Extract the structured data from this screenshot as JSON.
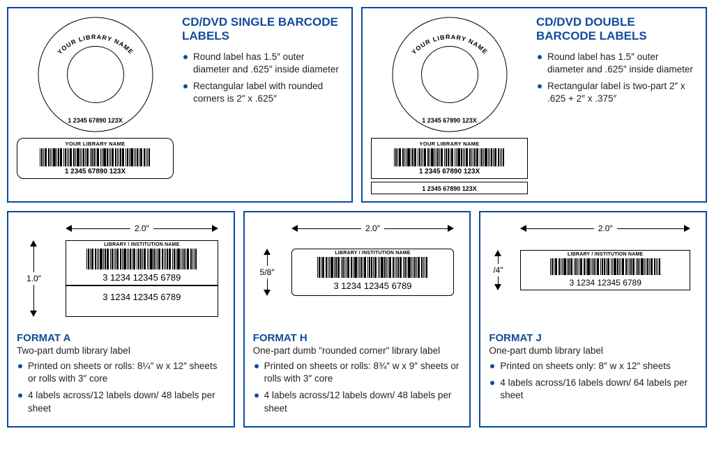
{
  "colors": {
    "border": "#0a4a9e",
    "heading": "#114b9a",
    "text": "#222222",
    "black": "#000000",
    "bg": "#ffffff"
  },
  "cd_single": {
    "title": "CD/DVD SINGLE BARCODE LABELS",
    "lib_name": "YOUR LIBRARY NAME",
    "code": "1 2345 67890 123X",
    "bullets": [
      "Round label has 1.5″ outer diameter and .625″ inside diameter",
      "Rectangular label with rounded corners is 2″ x .625″"
    ]
  },
  "cd_double": {
    "title": "CD/DVD DOUBLE BARCODE LABELS",
    "lib_name": "YOUR LIBRARY NAME",
    "code": "1 2345 67890 123X",
    "code2": "1 2345 67890 123X",
    "bullets": [
      "Round label has 1.5″ outer diameter and .625″ inside diameter",
      "Rectangular label is two-part 2″ x .625 + 2″ x .375″"
    ]
  },
  "format_a": {
    "name": "FORMAT A",
    "sub": "Two-part dumb library label",
    "width_dim": "2.0″",
    "height_dim": "1.0″",
    "inst": "LIBRARY / INSTITUTION NAME",
    "num": "3 1234 12345 6789",
    "bullets": [
      "Printed on sheets or rolls: 8¼″ w x 12″ sheets or rolls with 3″ core",
      "4 labels across/12 labels down/ 48 labels per sheet"
    ]
  },
  "format_h": {
    "name": "FORMAT H",
    "sub": "One-part dumb \"rounded corner\" library label",
    "width_dim": "2.0″",
    "height_dim": "5/8″",
    "inst": "LIBRARY / INSTITUTION NAME",
    "num": "3 1234 12345 6789",
    "bullets": [
      "Printed on sheets or rolls: 8¾″ w x 9″ sheets or rolls with 3″ core",
      "4 labels across/12 labels down/ 48 labels per sheet"
    ]
  },
  "format_j": {
    "name": "FORMAT J",
    "sub": "One-part dumb library label",
    "width_dim": "2.0″",
    "height_dim": "/4″",
    "inst": "LIBRARY / INSTITUTION NAME",
    "num": "3 1234 12345 6789",
    "bullets": [
      "Printed on sheets only: 8″ w x 12″ sheets",
      "4 labels across/16 labels down/ 64 labels per sheet"
    ]
  }
}
